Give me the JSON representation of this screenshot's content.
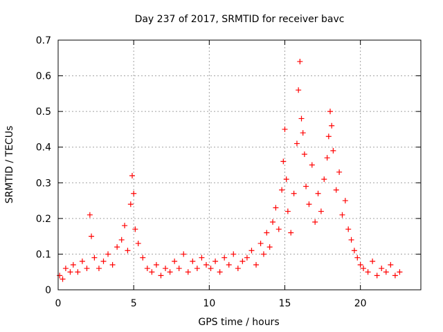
{
  "chart_data": {
    "type": "scatter",
    "title": "Day 237 of 2017, SRMTID for receiver bavc",
    "xlabel": "GPS time / hours",
    "ylabel": "SRMTID / TECUs",
    "xlim": [
      0,
      24
    ],
    "ylim": [
      0,
      0.7
    ],
    "xticks": [
      0,
      5,
      10,
      15,
      20
    ],
    "xtick_labels": [
      "0",
      "5",
      "10",
      "15",
      "20"
    ],
    "yticks": [
      0,
      0.1,
      0.2,
      0.3,
      0.4,
      0.5,
      0.6,
      0.7
    ],
    "ytick_labels": [
      "0",
      "0.1",
      "0.2",
      "0.3",
      "0.4",
      "0.5",
      "0.6",
      "0.7"
    ],
    "grid": true,
    "marker": "+",
    "color": "#ff0000",
    "series": [
      {
        "name": "SRMTID",
        "x": [
          0.1,
          0.3,
          0.5,
          0.8,
          1.0,
          1.3,
          1.6,
          1.9,
          2.1,
          2.2,
          2.4,
          2.7,
          3.0,
          3.3,
          3.6,
          3.9,
          4.2,
          4.4,
          4.6,
          4.8,
          4.9,
          5.0,
          5.1,
          5.3,
          5.6,
          5.9,
          6.2,
          6.5,
          6.8,
          7.1,
          7.4,
          7.7,
          8.0,
          8.3,
          8.6,
          8.9,
          9.2,
          9.5,
          9.8,
          10.1,
          10.4,
          10.7,
          11.0,
          11.3,
          11.6,
          11.9,
          12.2,
          12.5,
          12.8,
          13.1,
          13.4,
          13.6,
          13.8,
          14.0,
          14.2,
          14.4,
          14.6,
          14.8,
          14.9,
          15.0,
          15.1,
          15.2,
          15.4,
          15.6,
          15.8,
          15.9,
          16.0,
          16.1,
          16.2,
          16.3,
          16.4,
          16.6,
          16.8,
          17.0,
          17.2,
          17.4,
          17.6,
          17.8,
          17.9,
          18.0,
          18.1,
          18.2,
          18.4,
          18.6,
          18.8,
          19.0,
          19.2,
          19.4,
          19.6,
          19.8,
          20.0,
          20.2,
          20.5,
          20.8,
          21.1,
          21.4,
          21.7,
          22.0,
          22.3,
          22.6
        ],
        "y": [
          0.04,
          0.03,
          0.06,
          0.05,
          0.07,
          0.05,
          0.08,
          0.06,
          0.21,
          0.15,
          0.09,
          0.06,
          0.08,
          0.1,
          0.07,
          0.12,
          0.14,
          0.18,
          0.11,
          0.24,
          0.32,
          0.27,
          0.17,
          0.13,
          0.09,
          0.06,
          0.05,
          0.07,
          0.04,
          0.06,
          0.05,
          0.08,
          0.06,
          0.1,
          0.05,
          0.08,
          0.06,
          0.09,
          0.07,
          0.06,
          0.08,
          0.05,
          0.09,
          0.07,
          0.1,
          0.06,
          0.08,
          0.09,
          0.11,
          0.07,
          0.13,
          0.1,
          0.16,
          0.12,
          0.19,
          0.23,
          0.17,
          0.28,
          0.36,
          0.45,
          0.31,
          0.22,
          0.16,
          0.27,
          0.41,
          0.56,
          0.64,
          0.48,
          0.44,
          0.38,
          0.29,
          0.24,
          0.35,
          0.19,
          0.27,
          0.22,
          0.31,
          0.37,
          0.43,
          0.5,
          0.46,
          0.39,
          0.28,
          0.33,
          0.21,
          0.25,
          0.17,
          0.14,
          0.11,
          0.09,
          0.07,
          0.06,
          0.05,
          0.08,
          0.04,
          0.06,
          0.05,
          0.07,
          0.04,
          0.05
        ]
      }
    ]
  }
}
